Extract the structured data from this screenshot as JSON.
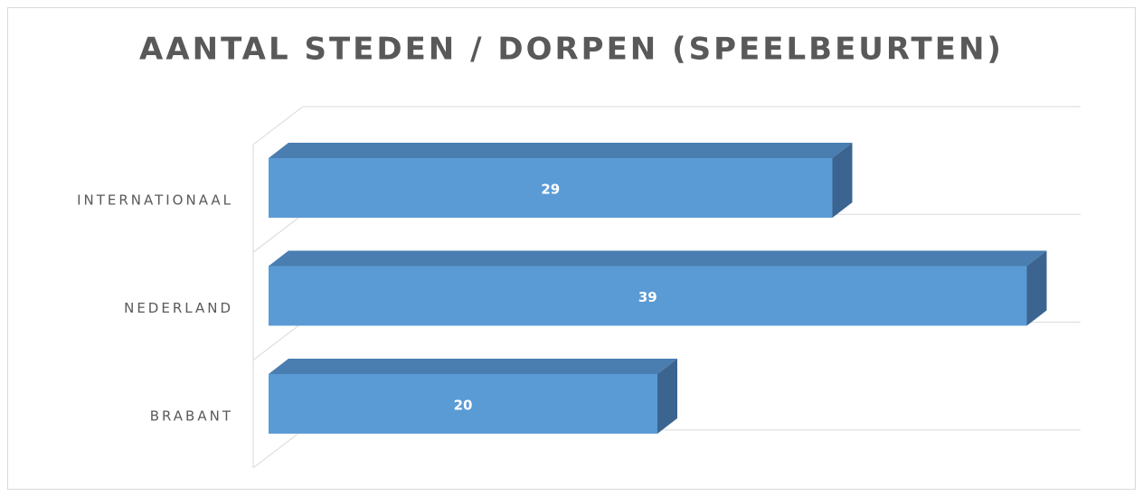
{
  "chart_data": {
    "type": "bar3d_horizontal",
    "title": "AANTAL STEDEN / DORPEN (SPEELBEURTEN)",
    "categories": [
      "INTERNATIONAAL",
      "NEDERLAND",
      "BRABANT"
    ],
    "values": [
      29,
      39,
      20
    ],
    "color": "#5b9bd5",
    "grid": true
  }
}
